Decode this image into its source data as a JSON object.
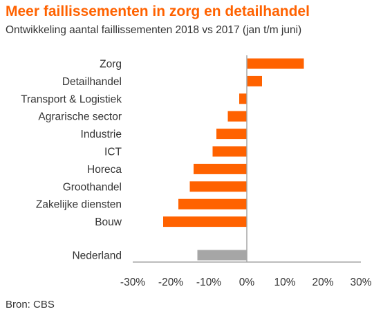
{
  "header": {
    "title": "Meer faillissementen in zorg en detailhandel",
    "subtitle": "Ontwikkeling aantal faillissementen 2018 vs 2017 (jan t/m juni)"
  },
  "footer": {
    "source": "Bron: CBS"
  },
  "colors": {
    "accent": "#ff6200",
    "highlight_bar": "#a6a6a6",
    "axis": "#a6a6a6",
    "text": "#333333"
  },
  "chart_data": {
    "type": "bar",
    "orientation": "horizontal",
    "categories": [
      "Zorg",
      "Detailhandel",
      "Transport & Logistiek",
      "Agrarische sector",
      "Industrie",
      "ICT",
      "Horeca",
      "Groothandel",
      "Zakelijke diensten",
      "Bouw",
      "Nederland"
    ],
    "values": [
      15,
      4,
      -2,
      -5,
      -8,
      -9,
      -14,
      -15,
      -18,
      -22,
      -13
    ],
    "bar_colors": [
      "#ff6200",
      "#ff6200",
      "#ff6200",
      "#ff6200",
      "#ff6200",
      "#ff6200",
      "#ff6200",
      "#ff6200",
      "#ff6200",
      "#ff6200",
      "#a6a6a6"
    ],
    "xlim": [
      -30,
      30
    ],
    "xticks": [
      -30,
      -20,
      -10,
      0,
      10,
      20,
      30
    ],
    "xtick_labels": [
      "-30%",
      "-20%",
      "-10%",
      "0%",
      "10%",
      "20%",
      "30%"
    ],
    "grid": false,
    "legend": "none"
  }
}
